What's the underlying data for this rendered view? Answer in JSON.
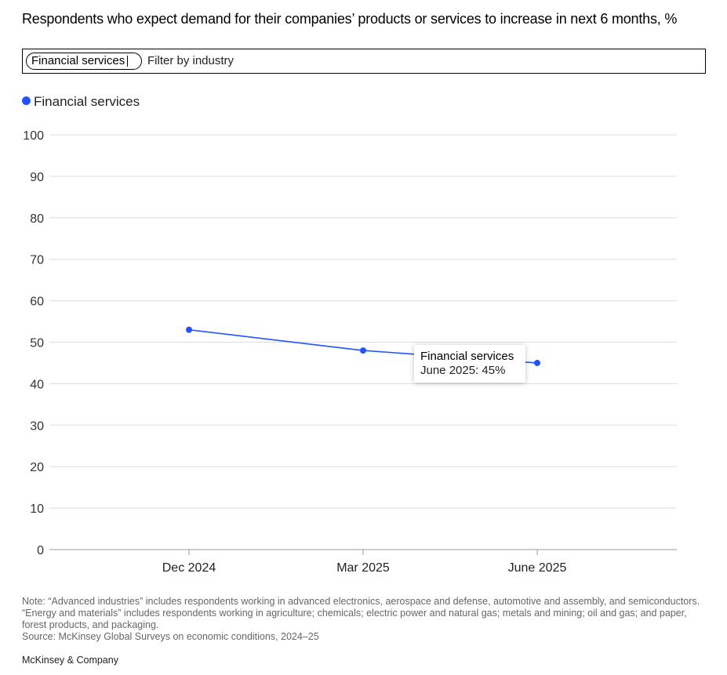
{
  "title": "Respondents who expect demand for their companies’ products or services to increase in next 6 months, %",
  "filter": {
    "chip_label": "Financial services",
    "placeholder": "Filter by industry"
  },
  "legend": {
    "label": "Financial services",
    "color": "#2251ff"
  },
  "tooltip": {
    "title": "Financial services",
    "value": "June 2025: 45%"
  },
  "chart_data": {
    "type": "line",
    "categories": [
      "Dec 2024",
      "Mar 2025",
      "June 2025"
    ],
    "series": [
      {
        "name": "Financial services",
        "values": [
          53,
          48,
          45
        ],
        "color": "#2251ff"
      }
    ],
    "ylim": [
      0,
      100
    ],
    "yticks": [
      0,
      10,
      20,
      30,
      40,
      50,
      60,
      70,
      80,
      90,
      100
    ],
    "grid": true,
    "legend_position": "top-left",
    "xlabel": "",
    "ylabel": ""
  },
  "footer": {
    "note": "Note: “Advanced industries” includes respondents working in advanced electronics, aerospace and defense, automotive and assembly, and semiconductors. “Energy and materials” includes respondents working in agriculture; chemicals; electric power and natural gas; metals and mining; oil and gas; and paper, forest products, and packaging.",
    "source": "Source: McKinsey Global Surveys on economic conditions, 2024–25",
    "brand": "McKinsey & Company"
  }
}
